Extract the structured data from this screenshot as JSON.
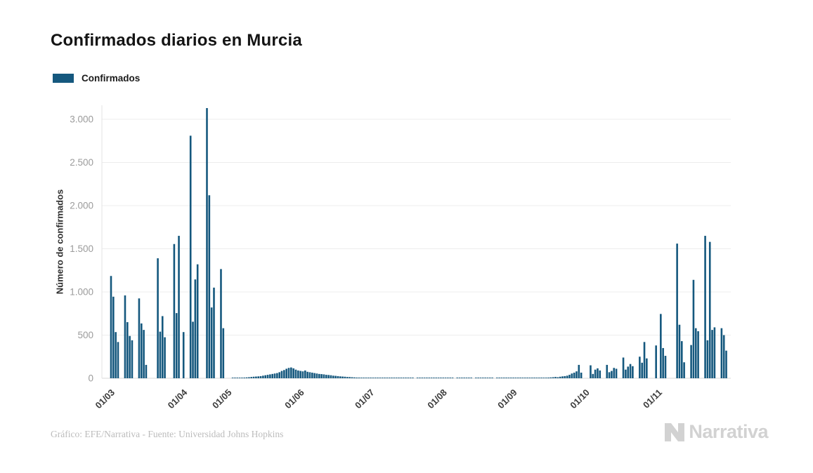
{
  "page": {
    "title": "Confirmados diarios en Murcia",
    "footer_credit": "Gráfico: EFE/Narrativa - Fuente: Universidad Johns Hopkins",
    "brand": "Narrativa"
  },
  "legend": {
    "label": "Confirmados"
  },
  "chart_data": {
    "type": "bar",
    "title": "Confirmados diarios en Murcia",
    "series_name": "Confirmados",
    "xlabel": "",
    "ylabel": "Número de confirmados",
    "bar_color": "#15587e",
    "grid": true,
    "legend_position": "top-left",
    "ylim": [
      0,
      3200
    ],
    "y_ticks": [
      0,
      500,
      1000,
      1500,
      2000,
      2500,
      3000
    ],
    "y_tick_labels": [
      "0",
      "500",
      "1.000",
      "1.500",
      "2.000",
      "2.500",
      "3.000"
    ],
    "x_tick_labels": [
      "01/03",
      "01/04",
      "01/05",
      "01/06",
      "01/07",
      "01/08",
      "01/09",
      "01/10",
      "01/11"
    ],
    "x_unit": "day",
    "x_range_days": "01/03 - 19/11",
    "max_value": 3130,
    "daily_values_by_month": {
      "03": [
        0,
        0,
        2,
        3,
        5,
        4,
        6,
        8,
        10,
        12,
        15,
        18,
        20,
        22,
        25,
        30,
        35,
        40,
        45,
        50,
        55,
        60,
        70,
        85,
        95,
        110,
        120,
        125,
        115,
        100,
        90
      ],
      "04": [
        85,
        80,
        90,
        75,
        70,
        65,
        60,
        55,
        50,
        48,
        45,
        40,
        38,
        35,
        30,
        28,
        25,
        22,
        20,
        18,
        15,
        14,
        12,
        10,
        8,
        8,
        6,
        5,
        5,
        4
      ],
      "05": [
        5,
        3,
        4,
        2,
        6,
        3,
        2,
        1,
        4,
        3,
        5,
        2,
        3,
        1,
        2,
        4,
        2,
        3,
        1,
        0,
        2,
        3,
        1,
        2,
        1,
        3,
        2,
        1,
        2,
        1,
        2
      ],
      "06": [
        2,
        1,
        3,
        2,
        1,
        0,
        2,
        1,
        2,
        3,
        1,
        2,
        1,
        0,
        1,
        2,
        1,
        3,
        2,
        1,
        2,
        1,
        0,
        1,
        2,
        1,
        2,
        3,
        2,
        1
      ],
      "07": [
        2,
        1,
        3,
        2,
        4,
        3,
        2,
        4,
        5,
        3,
        4,
        6,
        5,
        4,
        6,
        8,
        10,
        12,
        15,
        12,
        18,
        22,
        25,
        30,
        40,
        55,
        65,
        80,
        155,
        65,
        0
      ],
      "08": [
        0,
        0,
        150,
        50,
        100,
        115,
        90,
        0,
        0,
        155,
        70,
        85,
        120,
        110,
        0,
        0,
        240,
        100,
        135,
        165,
        140,
        0,
        0,
        250,
        180,
        420,
        230,
        0,
        0,
        0,
        380
      ],
      "09": [
        0,
        745,
        350,
        260,
        0,
        0,
        0,
        0,
        1560,
        620,
        430,
        185,
        0,
        0,
        385,
        1140,
        580,
        545,
        0,
        0,
        1650,
        440,
        1580,
        560,
        590,
        0,
        0,
        580,
        500,
        320
      ],
      "10": [
        1185,
        945,
        535,
        420,
        0,
        0,
        960,
        650,
        490,
        440,
        0,
        0,
        925,
        635,
        560,
        155,
        0,
        0,
        0,
        0,
        1390,
        540,
        720,
        475,
        0,
        0,
        0,
        1555,
        755,
        1650,
        0
      ],
      "11": [
        535,
        0,
        0,
        2810,
        655,
        1145,
        1320,
        0,
        0,
        0,
        3130,
        2120,
        820,
        1050,
        0,
        0,
        1265,
        580,
        0
      ]
    }
  }
}
